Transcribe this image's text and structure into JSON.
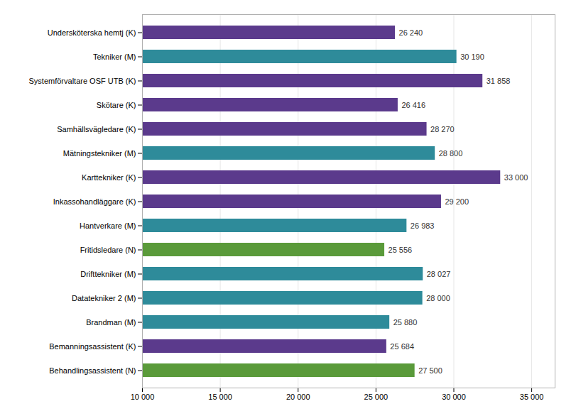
{
  "chart_data": {
    "type": "bar",
    "orientation": "horizontal",
    "categories": [
      "Behandlingsassistent (N)",
      "Bemanningsassistent (K)",
      "Brandman (M)",
      "Datatekniker 2 (M)",
      "Drifttekniker (M)",
      "Fritidsledare (N)",
      "Hantverkare (M)",
      "Inkassohandläggare (K)",
      "Karttekniker (K)",
      "Mätningstekniker (M)",
      "Samhällsvägledare (K)",
      "Skötare (K)",
      "Systemförvaltare OSF UTB (K)",
      "Tekniker (M)",
      "Undersköterska hemtj (K)"
    ],
    "values": [
      27500,
      25684,
      25880,
      28000,
      28027,
      25556,
      26983,
      29200,
      33000,
      28800,
      28270,
      26416,
      31858,
      30190,
      26240
    ],
    "value_labels": [
      "27 500",
      "25 684",
      "25 880",
      "28 000",
      "28 027",
      "25 556",
      "26 983",
      "29 200",
      "33 000",
      "28 800",
      "28 270",
      "26 416",
      "31 858",
      "30 190",
      "26 240"
    ],
    "data_labels": true,
    "colors": [
      "#5a9a3a",
      "#5b3a8c",
      "#2e8b9a",
      "#2e8b9a",
      "#2e8b9a",
      "#5a9a3a",
      "#2e8b9a",
      "#5b3a8c",
      "#5b3a8c",
      "#2e8b9a",
      "#5b3a8c",
      "#5b3a8c",
      "#5b3a8c",
      "#2e8b9a",
      "#5b3a8c"
    ],
    "xlim": [
      10000,
      36500
    ],
    "xticks": [
      {
        "value": 10000,
        "label": "10 000"
      },
      {
        "value": 15000,
        "label": "15 000"
      },
      {
        "value": 20000,
        "label": "20 000"
      },
      {
        "value": 25000,
        "label": "25 000"
      },
      {
        "value": 30000,
        "label": "30 000"
      },
      {
        "value": 35000,
        "label": "35 000"
      }
    ],
    "grid": true
  }
}
